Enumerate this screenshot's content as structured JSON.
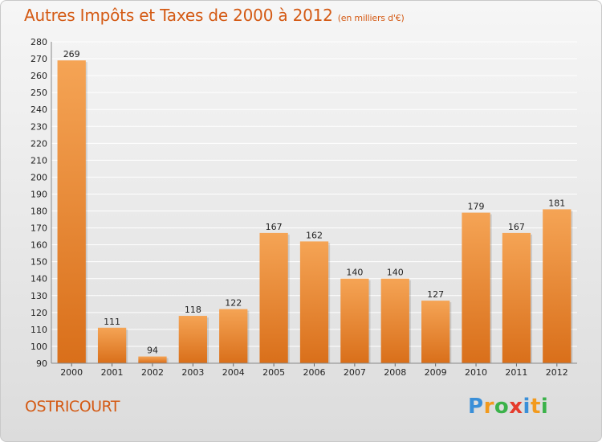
{
  "title": "Autres Impôts et Taxes de 2000 à 2012",
  "subtitle": "(en milliers d'€)",
  "commune": "OSTRICOURT",
  "logo": {
    "letters": [
      "P",
      "r",
      "o",
      "x",
      "i",
      "t",
      "i"
    ],
    "colors": [
      "#3a8fd8",
      "#f29a1d",
      "#3bb24a",
      "#e53b2c",
      "#3a8fd8",
      "#f29a1d",
      "#3bb24a"
    ]
  },
  "colors": {
    "title": "#d45a14",
    "bar_top": "#f5a455",
    "bar_bottom": "#d96f1a",
    "axis_text": "#222222",
    "grid": "#ffffff"
  },
  "chart_data": {
    "type": "bar",
    "categories": [
      "2000",
      "2001",
      "2002",
      "2003",
      "2004",
      "2005",
      "2006",
      "2007",
      "2008",
      "2009",
      "2010",
      "2011",
      "2012"
    ],
    "values": [
      269,
      111,
      94,
      118,
      122,
      167,
      162,
      140,
      140,
      127,
      179,
      167,
      181
    ],
    "data_labels": [
      "269",
      "111",
      "94",
      "118",
      "122",
      "167",
      "162",
      "140",
      "140",
      "127",
      "179",
      "167",
      "181"
    ],
    "ylim": [
      90,
      280
    ],
    "yticks": [
      90,
      100,
      110,
      120,
      130,
      140,
      150,
      160,
      170,
      180,
      190,
      200,
      210,
      220,
      230,
      240,
      250,
      260,
      270,
      280
    ],
    "grid": true,
    "xlabel": "",
    "ylabel": ""
  }
}
